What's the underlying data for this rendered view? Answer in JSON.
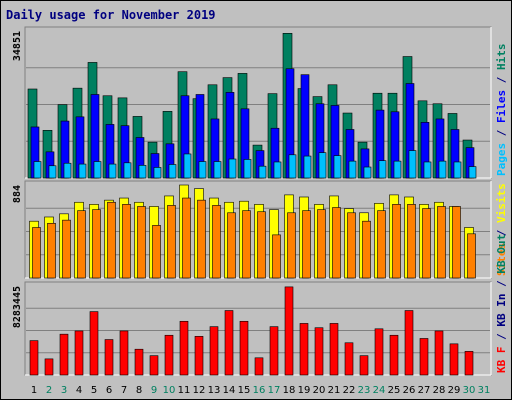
{
  "chart_data": {
    "type": "bar",
    "title": "Daily usage for November 2019",
    "categories": [
      "1",
      "2",
      "3",
      "4",
      "5",
      "6",
      "7",
      "8",
      "9",
      "10",
      "11",
      "12",
      "13",
      "14",
      "15",
      "16",
      "17",
      "18",
      "19",
      "20",
      "21",
      "22",
      "23",
      "24",
      "25",
      "26",
      "27",
      "28",
      "29",
      "30",
      "31"
    ],
    "weekend_days": [
      "2",
      "3",
      "9",
      "10",
      "16",
      "17",
      "23",
      "24",
      "30",
      "31"
    ],
    "panels": [
      {
        "name": "hits-files-pages",
        "ymax_label": "34851",
        "ymax": 34851,
        "right_label": [
          {
            "text": "Pages",
            "color": "#00c0ff"
          },
          {
            "text": " / ",
            "color": "#000080"
          },
          {
            "text": "Files",
            "color": "#0000ff"
          },
          {
            "text": " / ",
            "color": "#000080"
          },
          {
            "text": "Hits",
            "color": "#008060"
          }
        ],
        "series": [
          {
            "name": "Hits",
            "color": "#008060",
            "values": [
              21100,
              11300,
              17400,
              21300,
              27400,
              19500,
              19000,
              14600,
              8500,
              15800,
              25200,
              18800,
              22100,
              23800,
              24800,
              7800,
              20000,
              34300,
              21200,
              19300,
              22100,
              15400,
              8500,
              20100,
              20100,
              28800,
              18300,
              17600,
              15300,
              9000,
              null
            ]
          },
          {
            "name": "Files",
            "color": "#0000ff",
            "values": [
              12100,
              6200,
              13500,
              14500,
              19800,
              12700,
              12400,
              9600,
              5800,
              8100,
              19500,
              19800,
              14000,
              20300,
              16400,
              6500,
              11800,
              25900,
              24500,
              17600,
              17200,
              11500,
              6900,
              16100,
              15700,
              22400,
              13200,
              14000,
              11500,
              7200,
              null
            ]
          },
          {
            "name": "Pages",
            "color": "#00c0ff",
            "values": [
              3900,
              2900,
              3500,
              3300,
              3900,
              3300,
              3600,
              3000,
              2500,
              3200,
              5700,
              3900,
              3900,
              4500,
              4400,
              2800,
              3800,
              5500,
              5200,
              6000,
              5300,
              4000,
              2600,
              4100,
              4000,
              6500,
              3800,
              4000,
              3800,
              2700,
              null
            ]
          }
        ]
      },
      {
        "name": "visits-sites",
        "ymax_label": "884",
        "ymax": 884,
        "right_label": [
          {
            "text": "Sites",
            "color": "#ff8000"
          },
          {
            "text": " / ",
            "color": "#000080"
          },
          {
            "text": "Visits",
            "color": "#ffff00"
          }
        ],
        "series": [
          {
            "name": "Visits",
            "color": "#ffff00",
            "values": [
              540,
              580,
              610,
              720,
              700,
              740,
              760,
              720,
              680,
              780,
              884,
              850,
              760,
              720,
              730,
              700,
              650,
              790,
              770,
              700,
              780,
              660,
              620,
              710,
              790,
              770,
              700,
              720,
              680,
              480,
              null
            ]
          },
          {
            "name": "Sites",
            "color": "#ff8000",
            "values": [
              480,
              520,
              550,
              640,
              650,
              720,
              700,
              680,
              500,
              690,
              760,
              740,
              690,
              620,
              640,
              630,
              410,
              620,
              640,
              650,
              670,
              620,
              540,
              640,
              700,
              700,
              660,
              680,
              680,
              420,
              null
            ]
          }
        ]
      },
      {
        "name": "kbytes",
        "ymax_label": "8283445",
        "ymax": 8283445,
        "right_label": [
          {
            "text": "KB F",
            "color": "#ff0000"
          },
          {
            "text": " / ",
            "color": "#000080"
          },
          {
            "text": "KB In",
            "color": "#000080"
          },
          {
            "text": " / ",
            "color": "#000080"
          },
          {
            "text": "KB Out",
            "color": "#008060"
          }
        ],
        "series": [
          {
            "name": "KB F",
            "color": "#ff0000",
            "values": [
              3200000,
              1500000,
              3800000,
              4100000,
              5900000,
              3300000,
              4100000,
              2400000,
              1800000,
              3700000,
              5000000,
              3600000,
              4500000,
              6000000,
              5000000,
              1600000,
              4500000,
              8200000,
              4800000,
              4400000,
              4800000,
              3000000,
              1800000,
              4300000,
              3700000,
              6000000,
              3400000,
              4100000,
              2900000,
              2200000,
              null
            ]
          }
        ]
      }
    ]
  }
}
